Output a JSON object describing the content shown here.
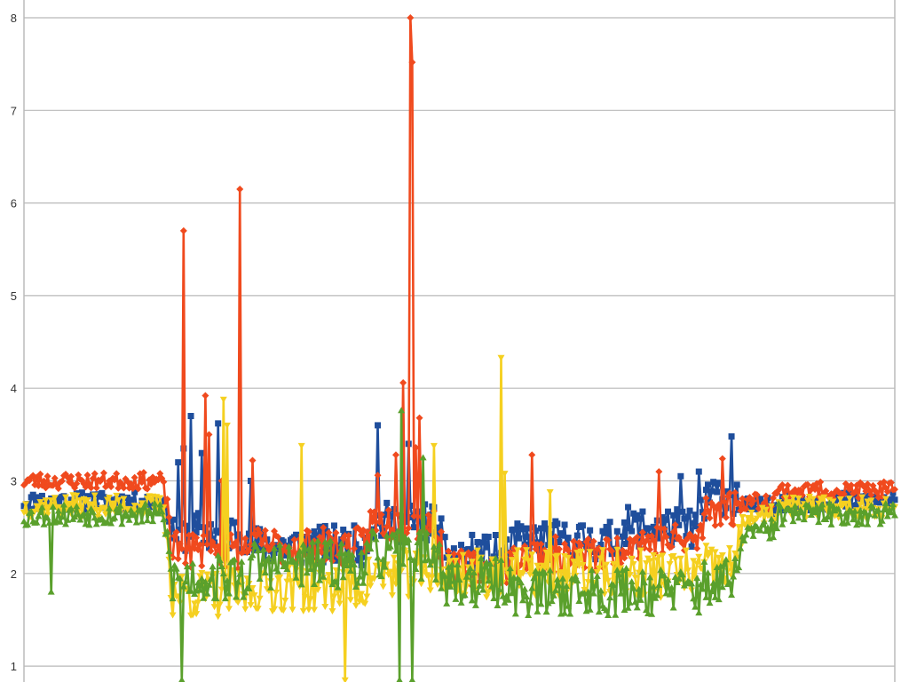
{
  "chart_data": {
    "type": "line",
    "title": "",
    "xlabel": "",
    "ylabel": "",
    "ylim": [
      0.83,
      8.17
    ],
    "xlim": [
      0,
      480
    ],
    "y_ticks": [
      1,
      2,
      3,
      4,
      5,
      6,
      7,
      8
    ],
    "y_tick_labels": [
      "1",
      "2",
      "3",
      "4",
      "5",
      "6",
      "7",
      "8"
    ],
    "grid": true,
    "legend": "none",
    "x_count": 481,
    "segments": [
      {
        "from": 0,
        "to": 10,
        "blue": 2.78,
        "red": 3.0,
        "yellow": 2.72,
        "green": 2.62
      },
      {
        "from": 10,
        "to": 80,
        "blue": 2.78,
        "red": 3.0,
        "yellow": 2.73,
        "green": 2.64
      },
      {
        "from": 80,
        "to": 125,
        "blue": 2.45,
        "red": 2.25,
        "yellow": 1.78,
        "green": 1.95
      },
      {
        "from": 125,
        "to": 190,
        "blue": 2.3,
        "red": 2.3,
        "yellow": 1.85,
        "green": 2.1
      },
      {
        "from": 190,
        "to": 230,
        "blue": 2.55,
        "red": 2.55,
        "yellow": 2.0,
        "green": 2.2
      },
      {
        "from": 230,
        "to": 270,
        "blue": 2.2,
        "red": 2.05,
        "yellow": 2.0,
        "green": 1.9
      },
      {
        "from": 270,
        "to": 330,
        "blue": 2.35,
        "red": 2.2,
        "yellow": 2.0,
        "green": 1.8
      },
      {
        "from": 330,
        "to": 375,
        "blue": 2.5,
        "red": 2.35,
        "yellow": 2.0,
        "green": 1.82
      },
      {
        "from": 375,
        "to": 395,
        "blue": 2.85,
        "red": 2.7,
        "yellow": 2.05,
        "green": 1.9
      },
      {
        "from": 395,
        "to": 415,
        "blue": 2.72,
        "red": 2.78,
        "yellow": 2.6,
        "green": 2.45
      },
      {
        "from": 415,
        "to": 480,
        "blue": 2.78,
        "red": 2.9,
        "yellow": 2.72,
        "green": 2.64
      }
    ],
    "series": [
      {
        "key": "blue",
        "color": "#1f4e9c",
        "marker": "square",
        "noise": 0.1,
        "seed": 11,
        "spikes": [
          [
            85,
            3.2
          ],
          [
            88,
            3.35
          ],
          [
            92,
            3.7
          ],
          [
            98,
            3.3
          ],
          [
            107,
            3.62
          ],
          [
            125,
            3.0
          ],
          [
            195,
            3.6
          ],
          [
            212,
            3.4
          ],
          [
            362,
            3.05
          ],
          [
            372,
            3.1
          ],
          [
            390,
            3.48
          ]
        ]
      },
      {
        "key": "red",
        "color": "#f04a1e",
        "marker": "diamond",
        "noise": 0.09,
        "seed": 23,
        "spikes": [
          [
            88,
            5.7
          ],
          [
            100,
            3.92
          ],
          [
            102,
            3.5
          ],
          [
            109,
            3.0
          ],
          [
            119,
            6.15
          ],
          [
            126,
            3.22
          ],
          [
            195,
            3.06
          ],
          [
            205,
            3.28
          ],
          [
            209,
            4.06
          ],
          [
            213,
            8.0
          ],
          [
            214,
            7.52
          ],
          [
            216,
            3.36
          ],
          [
            218,
            3.68
          ],
          [
            280,
            3.28
          ],
          [
            350,
            3.1
          ],
          [
            385,
            3.24
          ]
        ]
      },
      {
        "key": "yellow",
        "color": "#f5d020",
        "marker": "triangle-down",
        "noise": 0.12,
        "seed": 37,
        "spikes": [
          [
            110,
            3.88
          ],
          [
            112,
            3.6
          ],
          [
            153,
            3.38
          ],
          [
            177,
            0.85
          ],
          [
            226,
            3.38
          ],
          [
            263,
            4.33
          ],
          [
            265,
            3.08
          ],
          [
            290,
            2.88
          ]
        ]
      },
      {
        "key": "green",
        "color": "#5aa02c",
        "marker": "triangle-up",
        "noise": 0.12,
        "seed": 53,
        "spikes": [
          [
            15,
            1.8
          ],
          [
            87,
            0.85
          ],
          [
            207,
            0.85
          ],
          [
            208,
            3.76
          ],
          [
            214,
            0.85
          ],
          [
            220,
            3.25
          ]
        ]
      }
    ]
  }
}
